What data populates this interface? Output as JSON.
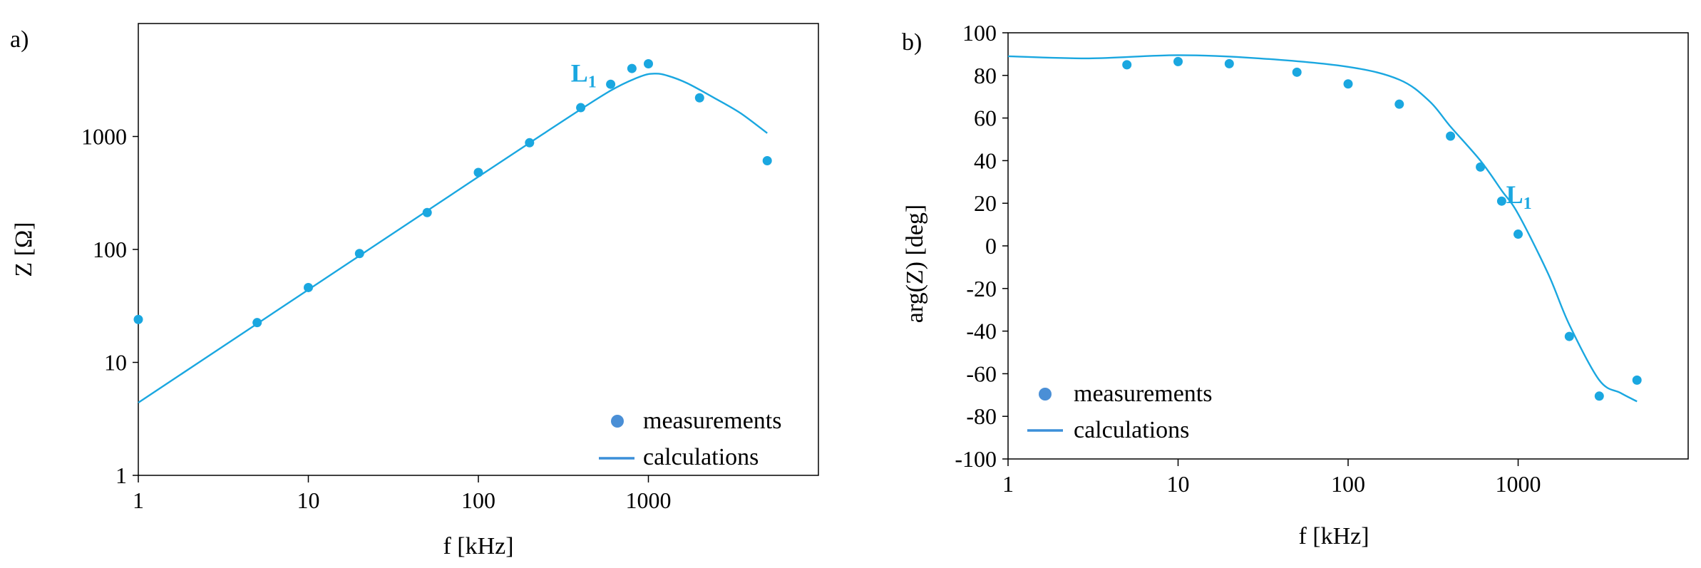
{
  "colors": {
    "marker": "#1aa7e0",
    "line": "#1aa7e0",
    "legend_marker": "#4a8fd6",
    "legend_line": "#3b8fd9",
    "axis": "#000000"
  },
  "chart_data": [
    {
      "panel": "a)",
      "type": "scatter+line",
      "xscale": "log",
      "yscale": "log",
      "xlabel": "f [kHz]",
      "ylabel": "Z [Ω]",
      "xlim": [
        1,
        10000
      ],
      "ylim": [
        1,
        10000
      ],
      "xticks": [
        1,
        10,
        100,
        1000
      ],
      "xtick_labels": [
        "1",
        "10",
        "100",
        "1000"
      ],
      "yticks": [
        1,
        10,
        100,
        1000
      ],
      "ytick_labels": [
        "1",
        "10",
        "100",
        "1000"
      ],
      "curve_label": {
        "text": "L",
        "subscript": "1",
        "x": 350,
        "y": 3050
      },
      "legend": {
        "position": "bottom-right",
        "entries": [
          "measurements",
          "calculations"
        ]
      },
      "series": [
        {
          "name": "measurements",
          "kind": "scatter",
          "x": [
            1,
            5,
            10,
            20,
            50,
            100,
            200,
            400,
            600,
            800,
            1000,
            2000,
            5000
          ],
          "y": [
            24,
            22.5,
            46,
            92,
            212,
            480,
            880,
            1800,
            2900,
            4000,
            4400,
            2200,
            610
          ]
        },
        {
          "name": "calculations",
          "kind": "line",
          "x": [
            1,
            10,
            100,
            300,
            600,
            900,
            1100,
            1300,
            1700,
            2500,
            3500,
            5000
          ],
          "y": [
            4.4,
            44,
            440,
            1310,
            2550,
            3400,
            3600,
            3450,
            2950,
            2150,
            1600,
            1070
          ]
        }
      ]
    },
    {
      "panel": "b)",
      "type": "scatter+line",
      "xscale": "log",
      "yscale": "linear",
      "xlabel": "f [kHz]",
      "ylabel": "arg(Z)  [deg]",
      "xlim": [
        1,
        10000
      ],
      "ylim": [
        -100,
        100
      ],
      "xticks": [
        1,
        10,
        100,
        1000
      ],
      "xtick_labels": [
        "1",
        "10",
        "100",
        "1000"
      ],
      "yticks": [
        -100,
        -80,
        -60,
        -40,
        -20,
        0,
        20,
        40,
        60,
        80,
        100
      ],
      "ytick_labels": [
        "-100",
        "-80",
        "-60",
        "-40",
        "-20",
        "0",
        "20",
        "40",
        "60",
        "80",
        "100"
      ],
      "curve_label": {
        "text": "L",
        "subscript": "1",
        "x": 850,
        "y": 20
      },
      "legend": {
        "position": "bottom-left",
        "entries": [
          "measurements",
          "calculations"
        ]
      },
      "series": [
        {
          "name": "measurements",
          "kind": "scatter",
          "x": [
            5,
            10,
            20,
            50,
            100,
            200,
            400,
            600,
            800,
            1000,
            2000,
            3000,
            5000
          ],
          "y": [
            85,
            86.5,
            85.5,
            81.5,
            76,
            66.5,
            51.5,
            37,
            21,
            5.5,
            -42.5,
            -70.5,
            -63
          ]
        },
        {
          "name": "calculations",
          "kind": "line",
          "x": [
            1,
            3,
            10,
            30,
            100,
            200,
            300,
            400,
            600,
            800,
            1000,
            1500,
            2000,
            3000,
            4000,
            5000
          ],
          "y": [
            89,
            88,
            89.5,
            88,
            84,
            78,
            68,
            56,
            40,
            26,
            15,
            -13,
            -37,
            -63,
            -69,
            -73
          ]
        }
      ]
    }
  ]
}
